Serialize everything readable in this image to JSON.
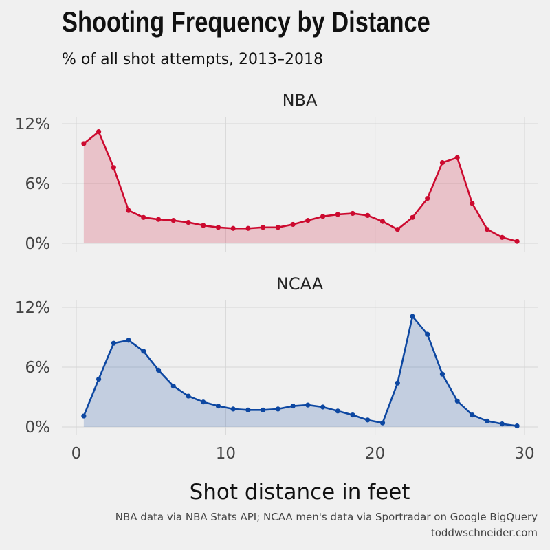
{
  "title": "Shooting Frequency by Distance",
  "subtitle": "% of all shot attempts, 2013–2018",
  "caption": {
    "line1": "NBA data via NBA Stats API; NCAA men's data via Sportradar on Google BigQuery",
    "line2": "toddwschneider.com"
  },
  "colors": {
    "nba": "#cc0a2f",
    "ncaa": "#0d47a1"
  },
  "chart_data": {
    "type": "area",
    "xlabel": "Shot distance in feet",
    "xlim": [
      0,
      30
    ],
    "ylim": [
      0,
      12
    ],
    "x_ticks": [
      0,
      10,
      20,
      30
    ],
    "y_ticks": [
      0,
      6,
      12
    ],
    "y_tick_labels": [
      "0%",
      "6%",
      "12%"
    ],
    "x_tick_labels": [
      "0",
      "10",
      "20",
      "30"
    ],
    "x": [
      0.5,
      1.5,
      2.5,
      3.5,
      4.5,
      5.5,
      6.5,
      7.5,
      8.5,
      9.5,
      10.5,
      11.5,
      12.5,
      13.5,
      14.5,
      15.5,
      16.5,
      17.5,
      18.5,
      19.5,
      20.5,
      21.5,
      22.5,
      23.5,
      24.5,
      25.5,
      26.5,
      27.5,
      28.5,
      29.5
    ],
    "series": [
      {
        "name": "NBA",
        "values": [
          10.0,
          11.2,
          7.6,
          3.3,
          2.6,
          2.4,
          2.3,
          2.1,
          1.8,
          1.6,
          1.5,
          1.5,
          1.6,
          1.6,
          1.9,
          2.3,
          2.7,
          2.9,
          3.0,
          2.8,
          2.2,
          1.4,
          2.6,
          4.5,
          8.1,
          8.6,
          4.0,
          1.4,
          0.6,
          0.2
        ]
      },
      {
        "name": "NCAA",
        "values": [
          1.1,
          4.8,
          8.4,
          8.7,
          7.6,
          5.7,
          4.1,
          3.1,
          2.5,
          2.1,
          1.8,
          1.7,
          1.7,
          1.8,
          2.1,
          2.2,
          2.0,
          1.6,
          1.2,
          0.7,
          0.4,
          4.4,
          11.1,
          9.3,
          5.3,
          2.6,
          1.2,
          0.6,
          0.3,
          0.1
        ]
      }
    ]
  }
}
